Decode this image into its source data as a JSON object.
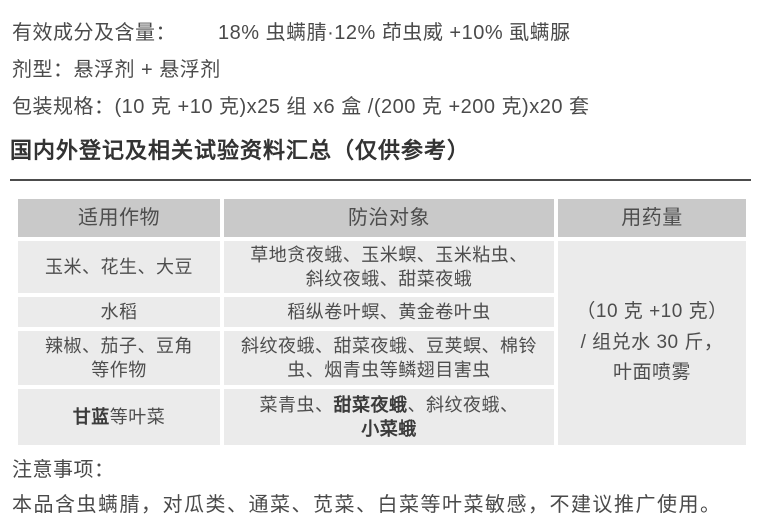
{
  "product": {
    "ingredients_label": "有效成分及含量：",
    "ingredients_value": "18% 虫螨腈·12% 茚虫威 +10% 虱螨脲",
    "formulation": "剂型：悬浮剂 + 悬浮剂",
    "packaging": "包装规格：(10 克 +10 克)x25 组 x6 盒 /(200 克 +200 克)x20 套"
  },
  "section_title": "国内外登记及相关试验资料汇总（仅供参考）",
  "table": {
    "headers": [
      "适用作物",
      "防治对象",
      "用药量"
    ],
    "rows": [
      {
        "crop": "玉米、花生、大豆",
        "pests": "草地贪夜蛾、玉米螟、玉米粘虫、\n斜纹夜蛾、甜菜夜蛾"
      },
      {
        "crop": "水稻",
        "pests": "稻纵卷叶螟、黄金卷叶虫"
      },
      {
        "crop": "辣椒、茄子、豆角\n等作物",
        "pests": "斜纹夜蛾、甜菜夜蛾、豆荚螟、棉铃\n虫、烟青虫等鳞翅目害虫"
      },
      {
        "crop_bold": "甘蓝",
        "crop_rest": "等叶菜",
        "pests_plain1": "菜青虫、",
        "pests_bold1": "甜菜夜蛾",
        "pests_plain2": "、斜纹夜蛾、",
        "pests_bold2": "小菜蛾"
      }
    ],
    "dosage": "（10 克 +10 克）\n/ 组兑水 30 斤，\n叶面喷雾"
  },
  "notes": {
    "label": "注意事项：",
    "text": "本品含虫螨腈，对瓜类、通菜、苋菜、白菜等叶菜敏感，不建议推广使用。"
  },
  "colors": {
    "header_bg": "#c9c9c9",
    "cell_bg": "#ebebeb",
    "text": "#4a4a4a",
    "title": "#333333"
  }
}
